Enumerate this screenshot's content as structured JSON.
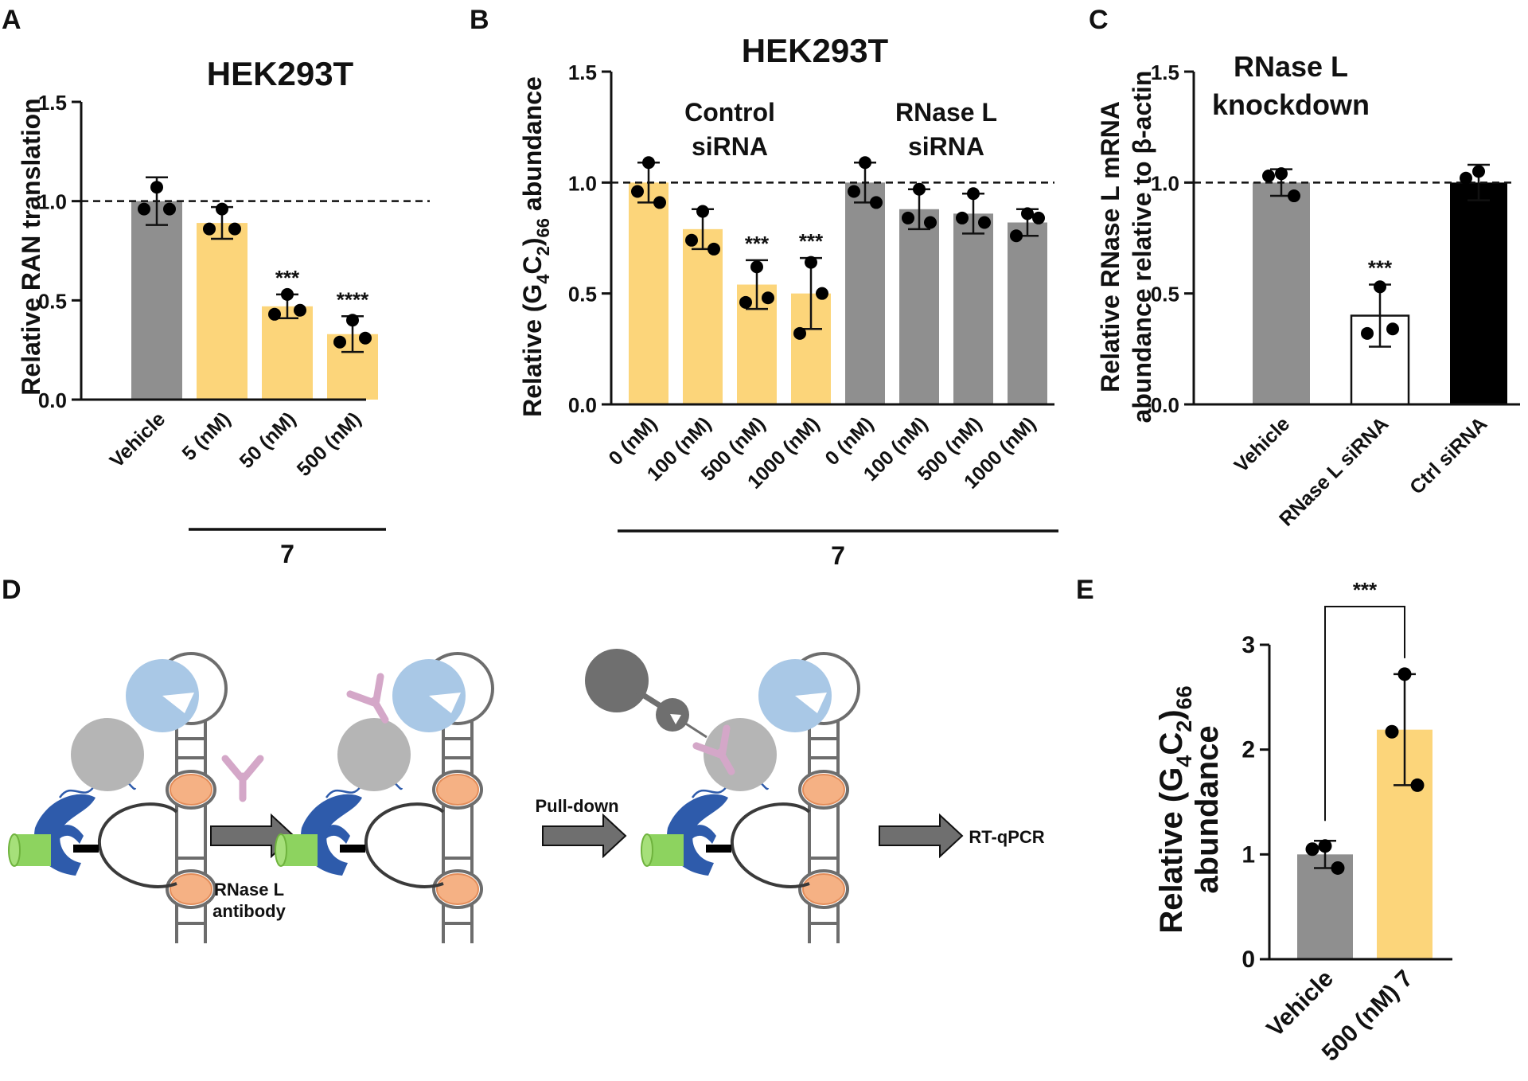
{
  "colors": {
    "gray": "#8f8f8f",
    "yellow": "#fcd57a",
    "white": "#ffffff",
    "black": "#000000",
    "arrow": "#6f6f6f",
    "rnase_l_blue": "#a9c8e6",
    "ribosome_gray": "#b5b5b5",
    "orange": "#f5b184",
    "antibody_pink": "#d4a7c8",
    "rna_blue": "#2e5bab",
    "green": "#8dd35f"
  },
  "panels": {
    "A": {
      "letter": "A",
      "chart_data": {
        "type": "bar",
        "title": "HEK293T",
        "ylabel": "Relative RAN translation",
        "ylim": [
          0,
          1.5
        ],
        "yticks": [
          "0.0",
          "0.5",
          "1.0",
          "1.5"
        ],
        "reference_line": 1.0,
        "categories": [
          "Vehicle",
          "5 (nM)",
          "50 (nM)",
          "500 (nM)"
        ],
        "values": [
          1.0,
          0.89,
          0.47,
          0.33
        ],
        "errors": [
          0.12,
          0.08,
          0.06,
          0.09
        ],
        "points": [
          [
            1.07,
            0.96,
            0.96
          ],
          [
            0.96,
            0.86,
            0.86
          ],
          [
            0.53,
            0.43,
            0.45
          ],
          [
            0.4,
            0.29,
            0.31
          ]
        ],
        "significance": [
          "",
          "",
          "***",
          "****"
        ],
        "bar_colors": [
          "gray",
          "yellow",
          "yellow",
          "yellow"
        ],
        "group_label": "7",
        "group_span": [
          1,
          3
        ]
      }
    },
    "B": {
      "letter": "B",
      "chart_data": {
        "type": "bar",
        "title": "HEK293T",
        "ylabel_main": "Relative (G",
        "ylabel_sub1": "4",
        "ylabel_mid": "C",
        "ylabel_sub2": "2",
        "ylabel_close": ")",
        "ylabel_sub3": "66",
        "ylabel_tail": " abundance",
        "ylim": [
          0,
          1.5
        ],
        "yticks": [
          "0.0",
          "0.5",
          "1.0",
          "1.5"
        ],
        "reference_line": 1.0,
        "categories": [
          "0 (nM)",
          "100 (nM)",
          "500 (nM)",
          "1000 (nM)",
          "0 (nM)",
          "100 (nM)",
          "500 (nM)",
          "1000 (nM)"
        ],
        "values": [
          1.0,
          0.79,
          0.54,
          0.5,
          1.0,
          0.88,
          0.86,
          0.82
        ],
        "errors": [
          0.09,
          0.09,
          0.11,
          0.16,
          0.09,
          0.09,
          0.09,
          0.06
        ],
        "points": [
          [
            1.09,
            0.96,
            0.91
          ],
          [
            0.87,
            0.74,
            0.7
          ],
          [
            0.62,
            0.46,
            0.48
          ],
          [
            0.64,
            0.32,
            0.5
          ],
          [
            1.09,
            0.96,
            0.91
          ],
          [
            0.97,
            0.84,
            0.82
          ],
          [
            0.95,
            0.84,
            0.82
          ],
          [
            0.86,
            0.76,
            0.84
          ]
        ],
        "significance": [
          "",
          "",
          "***",
          "***",
          "",
          "",
          "",
          ""
        ],
        "bar_colors": [
          "yellow",
          "yellow",
          "yellow",
          "yellow",
          "gray",
          "gray",
          "gray",
          "gray"
        ],
        "group_annotations": [
          {
            "line1": "Control",
            "line2": "siRNA",
            "center_index": 1.5
          },
          {
            "line1": "RNase L",
            "line2": "siRNA",
            "center_index": 5.5
          }
        ],
        "group_label": "7",
        "group_span": [
          0,
          7
        ]
      }
    },
    "C": {
      "letter": "C",
      "chart_data": {
        "type": "bar",
        "title_line1": "RNase L",
        "title_line2": "knockdown",
        "ylabel_line1": "Relative RNase L mRNA",
        "ylabel_line2_main": "abundance relative to ",
        "ylabel_line2_beta": "β",
        "ylabel_line2_tail": "-actin",
        "ylim": [
          0,
          1.5
        ],
        "yticks": [
          "0.0",
          "0.5",
          "1.0",
          "1.5"
        ],
        "reference_line": 1.0,
        "categories": [
          "Vehicle",
          "RNase L siRNA",
          "Ctrl siRNA"
        ],
        "values": [
          1.0,
          0.4,
          1.0
        ],
        "errors": [
          0.06,
          0.14,
          0.08
        ],
        "points": [
          [
            1.04,
            1.03,
            0.94
          ],
          [
            0.53,
            0.32,
            0.34
          ],
          [
            1.05,
            1.02,
            0.96
          ]
        ],
        "significance": [
          "",
          "***",
          ""
        ],
        "bar_colors": [
          "gray",
          "white",
          "black"
        ]
      }
    },
    "D": {
      "letter": "D",
      "labels": {
        "antibody_line1": "RNase L",
        "antibody_line2": "antibody",
        "pulldown": "Pull-down",
        "rtqpcr": "RT-qPCR"
      }
    },
    "E": {
      "letter": "E",
      "chart_data": {
        "type": "bar",
        "ylabel_main": "Relative (G",
        "ylabel_sub1": "4",
        "ylabel_mid": "C",
        "ylabel_sub2": "2",
        "ylabel_close": ")",
        "ylabel_sub3": "66",
        "ylabel_line2": "abundance",
        "ylim": [
          0,
          3
        ],
        "yticks": [
          "0",
          "1",
          "2",
          "3"
        ],
        "categories": [
          "Vehicle",
          "500 (nM) 7"
        ],
        "values": [
          1.0,
          2.19
        ],
        "errors": [
          0.13,
          0.53
        ],
        "points": [
          [
            1.08,
            1.05,
            0.87
          ],
          [
            2.72,
            2.17,
            1.66
          ]
        ],
        "bar_colors": [
          "gray",
          "yellow"
        ],
        "comparison": "***"
      }
    }
  }
}
